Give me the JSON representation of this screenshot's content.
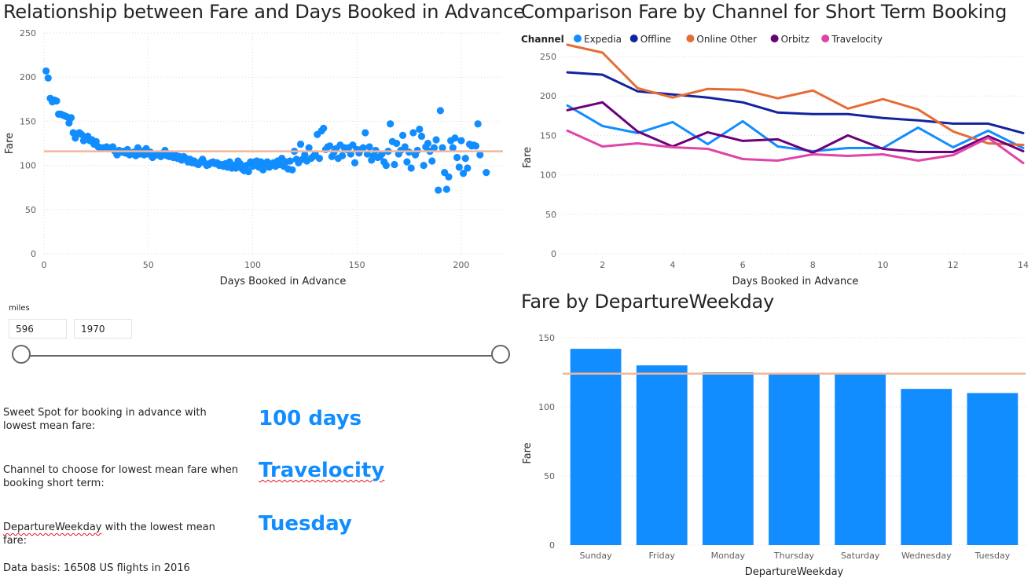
{
  "scatter": {
    "title": "Relationship between Fare and Days Booked in Advance",
    "xlabel": "Days Booked in Advance",
    "ylabel": "Fare",
    "xticks": [
      0,
      50,
      100,
      150,
      200
    ],
    "yticks": [
      0,
      50,
      100,
      150,
      200,
      250
    ],
    "avg_line": 116,
    "color": "#118DFF",
    "avg_color": "#F2B69A"
  },
  "line": {
    "title": "Comparison Fare by Channel for Short Term Booking",
    "legend_title": "Channel",
    "xlabel": "Days Booked in Advance",
    "ylabel": "Fare",
    "xticks": [
      2,
      4,
      6,
      8,
      10,
      12,
      14
    ],
    "yticks": [
      0,
      50,
      100,
      150,
      200,
      250
    ]
  },
  "bar": {
    "title": "Fare by DepartureWeekday",
    "xlabel": "DepartureWeekday",
    "ylabel": "Fare",
    "yticks": [
      0,
      50,
      100,
      150
    ],
    "avg_line": 124,
    "color": "#118DFF",
    "avg_color": "#F2B69A"
  },
  "slicer": {
    "label": "miles",
    "min_value": "596",
    "max_value": "1970",
    "min_level": 0,
    "max_level": 1
  },
  "kpis": {
    "sweet_spot_label": "Sweet Spot for booking in advance with lowest mean fare:",
    "sweet_spot_value": "100 days",
    "channel_label": "Channel to choose  for lowest mean fare when booking short term:",
    "channel_value": "Travelocity",
    "weekday_label_word": "DepartureWeekday",
    "weekday_label_rest": " with the lowest mean fare:",
    "weekday_value": "Tuesday"
  },
  "footer": "Data basis: 16508 US flights in 2016",
  "chart_data": [
    {
      "type": "scatter",
      "title": "Relationship between Fare and Days Booked in Advance",
      "xlabel": "Days Booked in Advance",
      "ylabel": "Fare",
      "xlim": [
        0,
        220
      ],
      "ylim": [
        0,
        250
      ],
      "reference_line": 116,
      "points": [
        [
          1,
          207
        ],
        [
          2,
          199
        ],
        [
          3,
          176
        ],
        [
          4,
          172
        ],
        [
          5,
          174
        ],
        [
          6,
          173
        ],
        [
          7,
          158
        ],
        [
          8,
          158
        ],
        [
          9,
          157
        ],
        [
          10,
          156
        ],
        [
          11,
          155
        ],
        [
          12,
          148
        ],
        [
          13,
          154
        ],
        [
          14,
          137
        ],
        [
          15,
          131
        ],
        [
          16,
          136
        ],
        [
          17,
          137
        ],
        [
          18,
          135
        ],
        [
          19,
          128
        ],
        [
          20,
          132
        ],
        [
          21,
          133
        ],
        [
          22,
          128
        ],
        [
          23,
          129
        ],
        [
          24,
          124
        ],
        [
          25,
          127
        ],
        [
          26,
          121
        ],
        [
          27,
          119
        ],
        [
          28,
          120
        ],
        [
          29,
          120
        ],
        [
          30,
          121
        ],
        [
          31,
          119
        ],
        [
          32,
          120
        ],
        [
          33,
          121
        ],
        [
          34,
          116
        ],
        [
          35,
          112
        ],
        [
          36,
          117
        ],
        [
          37,
          115
        ],
        [
          38,
          116
        ],
        [
          39,
          114
        ],
        [
          40,
          118
        ],
        [
          41,
          112
        ],
        [
          42,
          113
        ],
        [
          43,
          115
        ],
        [
          44,
          111
        ],
        [
          45,
          120
        ],
        [
          46,
          113
        ],
        [
          47,
          116
        ],
        [
          48,
          112
        ],
        [
          49,
          119
        ],
        [
          50,
          113
        ],
        [
          51,
          115
        ],
        [
          52,
          109
        ],
        [
          53,
          111
        ],
        [
          54,
          112
        ],
        [
          55,
          113
        ],
        [
          56,
          110
        ],
        [
          57,
          114
        ],
        [
          58,
          117
        ],
        [
          59,
          111
        ],
        [
          60,
          110
        ],
        [
          61,
          113
        ],
        [
          62,
          109
        ],
        [
          63,
          112
        ],
        [
          64,
          108
        ],
        [
          65,
          110
        ],
        [
          66,
          106
        ],
        [
          67,
          110
        ],
        [
          68,
          108
        ],
        [
          69,
          104
        ],
        [
          70,
          107
        ],
        [
          71,
          103
        ],
        [
          72,
          105
        ],
        [
          73,
          102
        ],
        [
          74,
          101
        ],
        [
          75,
          104
        ],
        [
          76,
          107
        ],
        [
          77,
          103
        ],
        [
          78,
          100
        ],
        [
          79,
          101
        ],
        [
          80,
          103
        ],
        [
          81,
          104
        ],
        [
          82,
          102
        ],
        [
          83,
          103
        ],
        [
          84,
          100
        ],
        [
          85,
          101
        ],
        [
          86,
          99
        ],
        [
          87,
          102
        ],
        [
          88,
          98
        ],
        [
          89,
          104
        ],
        [
          90,
          97
        ],
        [
          91,
          100
        ],
        [
          92,
          97
        ],
        [
          93,
          105
        ],
        [
          94,
          102
        ],
        [
          95,
          96
        ],
        [
          96,
          94
        ],
        [
          97,
          100
        ],
        [
          98,
          93
        ],
        [
          99,
          104
        ],
        [
          100,
          99
        ],
        [
          101,
          104
        ],
        [
          102,
          105
        ],
        [
          103,
          98
        ],
        [
          104,
          104
        ],
        [
          105,
          95
        ],
        [
          106,
          99
        ],
        [
          107,
          104
        ],
        [
          108,
          98
        ],
        [
          109,
          101
        ],
        [
          110,
          103
        ],
        [
          111,
          99
        ],
        [
          112,
          105
        ],
        [
          113,
          101
        ],
        [
          114,
          108
        ],
        [
          115,
          99
        ],
        [
          116,
          104
        ],
        [
          117,
          96
        ],
        [
          118,
          105
        ],
        [
          119,
          95
        ],
        [
          120,
          116
        ],
        [
          121,
          107
        ],
        [
          122,
          103
        ],
        [
          123,
          124
        ],
        [
          124,
          107
        ],
        [
          125,
          112
        ],
        [
          126,
          105
        ],
        [
          127,
          120
        ],
        [
          128,
          108
        ],
        [
          129,
          110
        ],
        [
          130,
          113
        ],
        [
          131,
          135
        ],
        [
          132,
          108
        ],
        [
          133,
          139
        ],
        [
          134,
          142
        ],
        [
          135,
          118
        ],
        [
          136,
          121
        ],
        [
          137,
          122
        ],
        [
          138,
          110
        ],
        [
          139,
          115
        ],
        [
          140,
          119
        ],
        [
          141,
          108
        ],
        [
          142,
          123
        ],
        [
          143,
          111
        ],
        [
          144,
          120
        ],
        [
          145,
          118
        ],
        [
          146,
          120
        ],
        [
          147,
          113
        ],
        [
          148,
          123
        ],
        [
          149,
          103
        ],
        [
          150,
          118
        ],
        [
          151,
          114
        ],
        [
          152,
          118
        ],
        [
          153,
          120
        ],
        [
          154,
          137
        ],
        [
          155,
          113
        ],
        [
          156,
          121
        ],
        [
          157,
          106
        ],
        [
          158,
          111
        ],
        [
          159,
          117
        ],
        [
          160,
          109
        ],
        [
          161,
          110
        ],
        [
          162,
          113
        ],
        [
          163,
          104
        ],
        [
          164,
          100
        ],
        [
          165,
          116
        ],
        [
          166,
          147
        ],
        [
          167,
          127
        ],
        [
          168,
          101
        ],
        [
          169,
          125
        ],
        [
          170,
          113
        ],
        [
          171,
          117
        ],
        [
          172,
          134
        ],
        [
          173,
          121
        ],
        [
          174,
          104
        ],
        [
          175,
          115
        ],
        [
          176,
          97
        ],
        [
          177,
          137
        ],
        [
          178,
          112
        ],
        [
          179,
          117
        ],
        [
          180,
          141
        ],
        [
          181,
          133
        ],
        [
          182,
          100
        ],
        [
          183,
          121
        ],
        [
          184,
          125
        ],
        [
          185,
          116
        ],
        [
          186,
          105
        ],
        [
          187,
          120
        ],
        [
          188,
          129
        ],
        [
          189,
          72
        ],
        [
          190,
          162
        ],
        [
          191,
          120
        ],
        [
          192,
          92
        ],
        [
          193,
          73
        ],
        [
          194,
          87
        ],
        [
          195,
          128
        ],
        [
          196,
          120
        ],
        [
          197,
          131
        ],
        [
          198,
          109
        ],
        [
          199,
          98
        ],
        [
          200,
          128
        ],
        [
          201,
          91
        ],
        [
          202,
          108
        ],
        [
          203,
          97
        ],
        [
          204,
          124
        ],
        [
          205,
          122
        ],
        [
          206,
          123
        ],
        [
          207,
          122
        ],
        [
          208,
          147
        ],
        [
          209,
          112
        ],
        [
          212,
          92
        ]
      ]
    },
    {
      "type": "line",
      "title": "Comparison Fare by Channel for Short Term Booking",
      "xlabel": "Days Booked in Advance",
      "ylabel": "Fare",
      "x": [
        1,
        2,
        3,
        4,
        5,
        6,
        7,
        8,
        9,
        10,
        11,
        12,
        13,
        14
      ],
      "xlim": [
        1,
        14
      ],
      "ylim": [
        0,
        260
      ],
      "legend_title": "Channel",
      "legend_position": "top-left",
      "series": [
        {
          "name": "Expedia",
          "color": "#118DFF",
          "values": [
            188,
            162,
            153,
            167,
            139,
            168,
            136,
            130,
            134,
            134,
            160,
            135,
            156,
            134
          ]
        },
        {
          "name": "Offline",
          "color": "#12239E",
          "values": [
            230,
            227,
            206,
            202,
            198,
            192,
            179,
            177,
            177,
            172,
            169,
            165,
            165,
            153
          ]
        },
        {
          "name": "Online Other",
          "color": "#E66C37",
          "values": [
            265,
            255,
            210,
            198,
            209,
            208,
            197,
            207,
            184,
            196,
            183,
            155,
            140,
            138
          ]
        },
        {
          "name": "Orbitz",
          "color": "#6B007B",
          "values": [
            182,
            192,
            155,
            136,
            154,
            143,
            145,
            128,
            150,
            133,
            129,
            129,
            149,
            130
          ]
        },
        {
          "name": "Travelocity",
          "color": "#E044A7",
          "values": [
            156,
            136,
            140,
            135,
            133,
            120,
            118,
            126,
            124,
            126,
            118,
            125,
            147,
            115
          ]
        }
      ]
    },
    {
      "type": "bar",
      "title": "Fare by DepartureWeekday",
      "xlabel": "DepartureWeekday",
      "ylabel": "Fare",
      "categories": [
        "Sunday",
        "Friday",
        "Monday",
        "Thursday",
        "Saturday",
        "Wednesday",
        "Tuesday"
      ],
      "values": [
        142,
        130,
        125,
        124,
        124,
        113,
        110
      ],
      "ylim": [
        0,
        150
      ],
      "reference_line": 124
    }
  ]
}
